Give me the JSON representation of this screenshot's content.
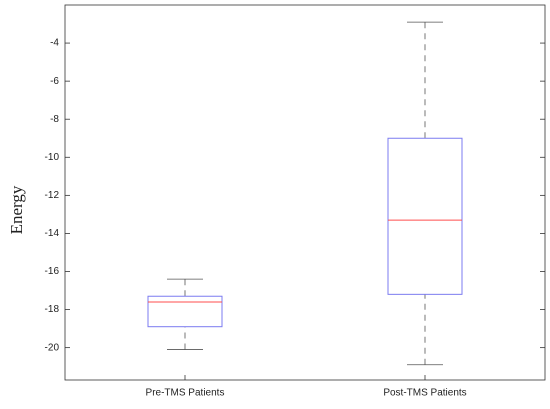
{
  "chart_data": {
    "type": "box",
    "ylabel": "Energy",
    "categories": [
      "Pre-TMS Patients",
      "Post-TMS Patients"
    ],
    "boxes": [
      {
        "min": -20.1,
        "q1": -18.9,
        "median": -17.6,
        "q3": -17.3,
        "max": -16.4
      },
      {
        "min": -20.9,
        "q1": -17.2,
        "median": -13.3,
        "q3": -9.0,
        "max": -2.9
      }
    ],
    "box_color": "#7b7bf0",
    "median_color": "#ff4d4d",
    "whisker_color": "#555555",
    "ylim": [
      -21.7,
      -2
    ],
    "yticks": [
      -20,
      -18,
      -16,
      -14,
      -12,
      -10,
      -8,
      -6,
      -4
    ]
  }
}
